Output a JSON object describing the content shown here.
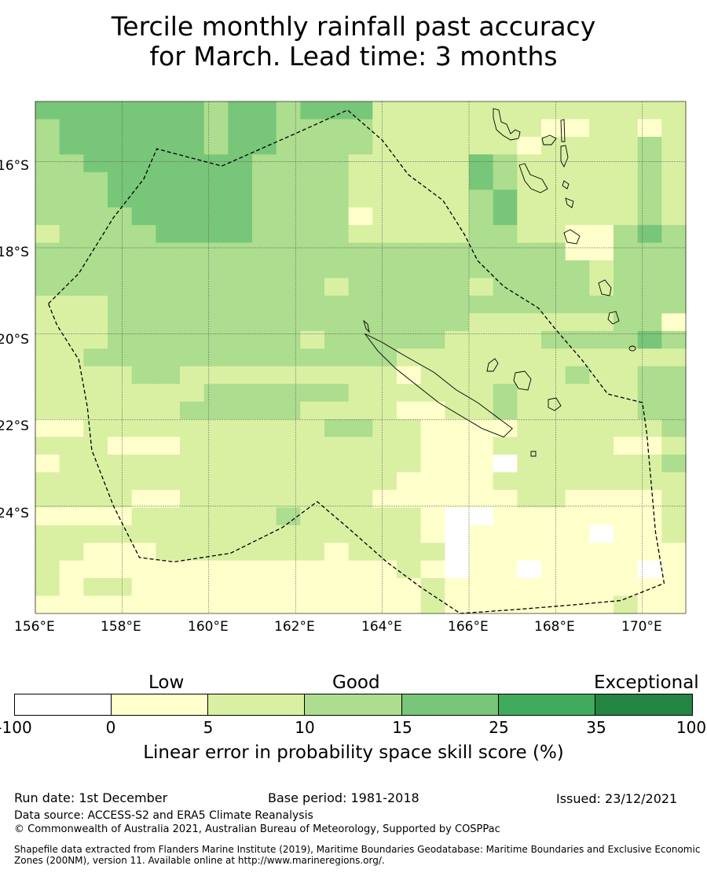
{
  "title": {
    "line1": "Tercile monthly rainfall past accuracy",
    "line2": "for March. Lead time: 3 months"
  },
  "map": {
    "lon_range": [
      156.0,
      171.0
    ],
    "lat_range": [
      -26.5,
      -14.6
    ],
    "x_ticks": [
      "156°E",
      "158°E",
      "160°E",
      "162°E",
      "164°E",
      "166°E",
      "168°E",
      "170°E"
    ],
    "y_ticks": [
      "16°S",
      "18°S",
      "20°S",
      "22°S",
      "24°S"
    ],
    "grid_classes_description_legend": "0:-100-0,1:0-5,2:5-10,3:10-15,4:15-25",
    "grid": [
      [
        4,
        4,
        4,
        4,
        4,
        4,
        4,
        3,
        4,
        4,
        3,
        4,
        4,
        4,
        2,
        2,
        2,
        2,
        2,
        2,
        2,
        2,
        2,
        2,
        2,
        2,
        2
      ],
      [
        3,
        4,
        4,
        4,
        4,
        4,
        4,
        3,
        4,
        4,
        3,
        3,
        3,
        3,
        2,
        2,
        2,
        2,
        2,
        2,
        2,
        1,
        1,
        2,
        2,
        1,
        2
      ],
      [
        3,
        4,
        4,
        4,
        4,
        4,
        4,
        3,
        4,
        4,
        3,
        3,
        3,
        3,
        2,
        2,
        2,
        2,
        2,
        2,
        1,
        2,
        2,
        2,
        2,
        3,
        2
      ],
      [
        3,
        3,
        4,
        4,
        4,
        4,
        4,
        4,
        4,
        3,
        3,
        3,
        3,
        2,
        2,
        2,
        2,
        2,
        4,
        3,
        2,
        2,
        2,
        2,
        2,
        3,
        2
      ],
      [
        3,
        3,
        3,
        4,
        4,
        4,
        4,
        4,
        4,
        3,
        3,
        3,
        3,
        2,
        2,
        2,
        2,
        2,
        4,
        3,
        2,
        2,
        2,
        2,
        2,
        3,
        2
      ],
      [
        3,
        3,
        3,
        4,
        4,
        4,
        4,
        4,
        4,
        3,
        3,
        3,
        3,
        2,
        2,
        2,
        2,
        2,
        3,
        4,
        2,
        2,
        2,
        2,
        2,
        3,
        2
      ],
      [
        3,
        3,
        3,
        3,
        4,
        4,
        4,
        4,
        4,
        3,
        3,
        3,
        3,
        1,
        2,
        2,
        2,
        2,
        3,
        4,
        2,
        2,
        2,
        2,
        2,
        3,
        2
      ],
      [
        2,
        3,
        3,
        3,
        3,
        4,
        4,
        4,
        4,
        3,
        3,
        3,
        3,
        2,
        2,
        2,
        2,
        2,
        3,
        3,
        2,
        2,
        1,
        1,
        3,
        4,
        3
      ],
      [
        3,
        3,
        3,
        3,
        3,
        3,
        3,
        3,
        3,
        3,
        3,
        3,
        3,
        3,
        3,
        3,
        3,
        3,
        3,
        3,
        3,
        3,
        1,
        1,
        3,
        3,
        3
      ],
      [
        3,
        3,
        3,
        3,
        3,
        3,
        3,
        3,
        3,
        3,
        3,
        3,
        3,
        3,
        3,
        3,
        3,
        3,
        3,
        3,
        3,
        3,
        3,
        2,
        3,
        3,
        3
      ],
      [
        3,
        3,
        3,
        3,
        3,
        3,
        3,
        3,
        3,
        3,
        3,
        3,
        2,
        3,
        3,
        3,
        3,
        3,
        2,
        3,
        3,
        3,
        3,
        2,
        3,
        3,
        3
      ],
      [
        2,
        2,
        2,
        3,
        3,
        3,
        3,
        3,
        3,
        3,
        3,
        3,
        3,
        3,
        3,
        3,
        3,
        3,
        3,
        3,
        3,
        3,
        3,
        3,
        3,
        3,
        3
      ],
      [
        2,
        2,
        2,
        3,
        3,
        3,
        3,
        3,
        3,
        3,
        3,
        3,
        3,
        3,
        3,
        3,
        3,
        3,
        2,
        2,
        2,
        2,
        2,
        2,
        3,
        3,
        1
      ],
      [
        2,
        2,
        2,
        3,
        3,
        3,
        3,
        3,
        3,
        3,
        3,
        2,
        3,
        3,
        3,
        3,
        3,
        2,
        2,
        2,
        2,
        3,
        3,
        3,
        3,
        4,
        3
      ],
      [
        2,
        2,
        3,
        3,
        3,
        3,
        3,
        3,
        3,
        3,
        3,
        3,
        3,
        3,
        3,
        2,
        2,
        2,
        2,
        2,
        2,
        2,
        2,
        2,
        2,
        2,
        2
      ],
      [
        2,
        2,
        2,
        2,
        3,
        3,
        2,
        2,
        2,
        2,
        2,
        2,
        2,
        2,
        2,
        1,
        2,
        2,
        2,
        2,
        2,
        2,
        3,
        2,
        2,
        3,
        3
      ],
      [
        2,
        2,
        2,
        2,
        2,
        2,
        2,
        3,
        3,
        3,
        3,
        3,
        3,
        2,
        2,
        2,
        2,
        2,
        2,
        3,
        2,
        2,
        2,
        2,
        2,
        3,
        3
      ],
      [
        2,
        2,
        2,
        2,
        2,
        2,
        3,
        3,
        3,
        3,
        3,
        2,
        2,
        2,
        2,
        1,
        1,
        2,
        2,
        3,
        2,
        2,
        2,
        2,
        2,
        3,
        3
      ],
      [
        1,
        1,
        2,
        2,
        2,
        2,
        2,
        2,
        2,
        2,
        2,
        2,
        3,
        3,
        2,
        2,
        1,
        1,
        1,
        1,
        2,
        2,
        2,
        2,
        2,
        2,
        3
      ],
      [
        2,
        2,
        2,
        1,
        1,
        1,
        2,
        2,
        2,
        2,
        2,
        2,
        2,
        2,
        2,
        2,
        1,
        1,
        1,
        2,
        2,
        2,
        2,
        2,
        1,
        1,
        2
      ],
      [
        1,
        2,
        2,
        2,
        2,
        2,
        2,
        2,
        2,
        2,
        2,
        2,
        2,
        2,
        2,
        2,
        1,
        1,
        1,
        0,
        2,
        2,
        2,
        2,
        2,
        2,
        3
      ],
      [
        2,
        2,
        2,
        2,
        2,
        2,
        2,
        2,
        2,
        2,
        2,
        2,
        2,
        2,
        2,
        1,
        1,
        1,
        1,
        2,
        2,
        2,
        2,
        2,
        2,
        2,
        2
      ],
      [
        2,
        2,
        2,
        2,
        1,
        1,
        2,
        2,
        2,
        2,
        2,
        2,
        2,
        2,
        1,
        1,
        1,
        1,
        1,
        1,
        2,
        2,
        1,
        1,
        1,
        1,
        2
      ],
      [
        1,
        1,
        1,
        1,
        2,
        2,
        2,
        2,
        2,
        2,
        3,
        2,
        2,
        2,
        2,
        2,
        1,
        0,
        0,
        1,
        1,
        1,
        1,
        1,
        1,
        1,
        2
      ],
      [
        2,
        2,
        2,
        2,
        2,
        2,
        2,
        2,
        2,
        2,
        2,
        2,
        2,
        2,
        2,
        2,
        1,
        0,
        1,
        1,
        1,
        1,
        1,
        0,
        1,
        1,
        2
      ],
      [
        2,
        2,
        1,
        1,
        1,
        2,
        2,
        2,
        2,
        2,
        2,
        2,
        1,
        2,
        2,
        2,
        2,
        0,
        1,
        1,
        1,
        1,
        1,
        1,
        1,
        1,
        1
      ],
      [
        2,
        1,
        1,
        1,
        1,
        1,
        1,
        1,
        1,
        1,
        1,
        1,
        1,
        1,
        1,
        2,
        1,
        0,
        1,
        1,
        0,
        1,
        1,
        1,
        1,
        0,
        1
      ],
      [
        2,
        1,
        2,
        2,
        1,
        1,
        1,
        1,
        1,
        1,
        1,
        1,
        1,
        1,
        1,
        1,
        2,
        1,
        1,
        1,
        1,
        1,
        1,
        1,
        1,
        1,
        1
      ],
      [
        1,
        1,
        1,
        1,
        1,
        1,
        1,
        1,
        1,
        1,
        1,
        1,
        1,
        1,
        1,
        1,
        2,
        1,
        1,
        1,
        1,
        1,
        1,
        1,
        2,
        1,
        1
      ]
    ],
    "boundary_lonlat": [
      [
        156.3,
        -19.3
      ],
      [
        157.0,
        -18.6
      ],
      [
        157.8,
        -17.3
      ],
      [
        158.5,
        -16.4
      ],
      [
        158.8,
        -15.7
      ],
      [
        160.3,
        -16.1
      ],
      [
        162.1,
        -15.3
      ],
      [
        163.2,
        -14.8
      ],
      [
        164.0,
        -15.5
      ],
      [
        164.6,
        -16.3
      ],
      [
        165.4,
        -16.9
      ],
      [
        165.9,
        -17.7
      ],
      [
        166.2,
        -18.3
      ],
      [
        166.8,
        -18.9
      ],
      [
        167.6,
        -19.4
      ],
      [
        168.0,
        -19.9
      ],
      [
        168.6,
        -20.6
      ],
      [
        169.2,
        -21.4
      ],
      [
        170.0,
        -21.6
      ],
      [
        170.1,
        -22.3
      ],
      [
        170.3,
        -24.6
      ],
      [
        170.5,
        -25.8
      ],
      [
        169.5,
        -26.2
      ],
      [
        168.4,
        -26.3
      ],
      [
        167.2,
        -26.4
      ],
      [
        165.8,
        -26.5
      ],
      [
        164.9,
        -25.9
      ],
      [
        164.1,
        -25.3
      ],
      [
        163.2,
        -24.5
      ],
      [
        162.5,
        -23.9
      ],
      [
        161.7,
        -24.5
      ],
      [
        160.5,
        -25.1
      ],
      [
        159.2,
        -25.3
      ],
      [
        158.4,
        -25.2
      ],
      [
        157.8,
        -24.0
      ],
      [
        157.3,
        -22.7
      ],
      [
        157.2,
        -21.7
      ],
      [
        157.0,
        -20.6
      ],
      [
        156.5,
        -19.8
      ],
      [
        156.3,
        -19.3
      ]
    ],
    "new_caledonia_lonlat": [
      [
        163.6,
        -20.0
      ],
      [
        164.0,
        -20.2
      ],
      [
        164.5,
        -20.5
      ],
      [
        165.2,
        -20.9
      ],
      [
        165.7,
        -21.3
      ],
      [
        166.2,
        -21.6
      ],
      [
        166.6,
        -21.9
      ],
      [
        167.0,
        -22.2
      ],
      [
        166.8,
        -22.4
      ],
      [
        166.3,
        -22.2
      ],
      [
        165.8,
        -21.9
      ],
      [
        165.3,
        -21.6
      ],
      [
        164.8,
        -21.2
      ],
      [
        164.3,
        -20.8
      ],
      [
        163.9,
        -20.4
      ],
      [
        163.6,
        -20.0
      ]
    ]
  },
  "colorbar": {
    "categories": [
      "Low",
      "Good",
      "Exceptional"
    ],
    "ticks": [
      "-100",
      "0",
      "5",
      "10",
      "15",
      "25",
      "35",
      "100"
    ],
    "colors": [
      "#ffffff",
      "#ffffcc",
      "#d9f0a3",
      "#addd8e",
      "#78c679",
      "#41ab5d",
      "#238443"
    ],
    "label": "Linear error in probability space skill score (%)"
  },
  "footer": {
    "run_date": "Run date: 1st December",
    "base_period": "Base period: 1981-2018",
    "issued": "Issued: 23/12/2021",
    "data_source": "Data source: ACCESS-S2 and ERA5 Climate Reanalysis",
    "copyright": "© Commonwealth of Australia 2021, Australian Bureau of Meteorology, Supported by COSPPac",
    "shapefile_line1": "Shapefile data extracted from Flanders Marine Institute (2019), Maritime Boundaries Geodatabase: Maritime Boundaries and Exclusive Economic",
    "shapefile_line2": "Zones (200NM), version 11. Available online at http://www.marineregions.org/."
  }
}
